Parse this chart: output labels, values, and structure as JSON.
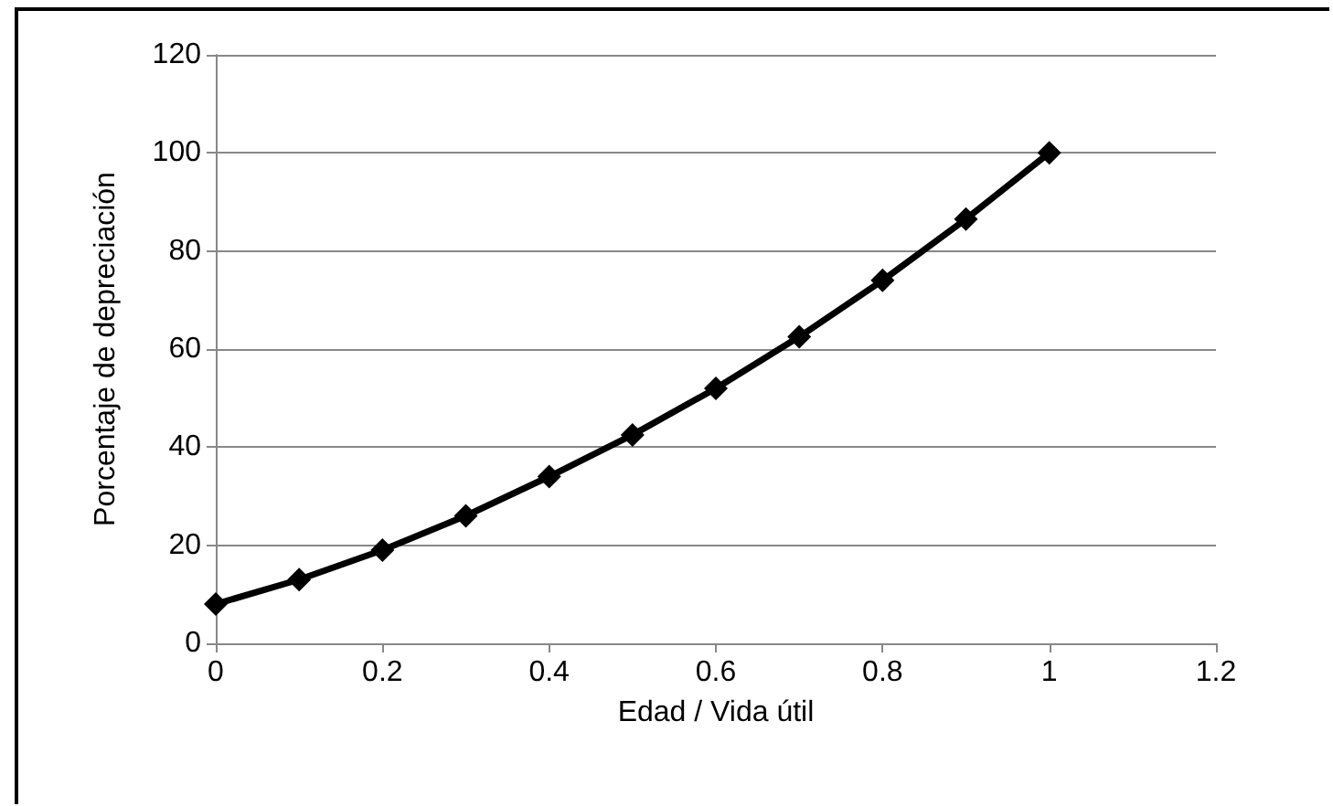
{
  "chart_data": {
    "type": "line",
    "xlabel": "Edad / Vida útil",
    "ylabel": "Porcentaje de depreciación",
    "x": [
      0,
      0.1,
      0.2,
      0.3,
      0.4,
      0.5,
      0.6,
      0.7,
      0.8,
      0.9,
      1
    ],
    "series": [
      {
        "color": "#000000",
        "values": [
          8,
          13,
          19,
          26,
          34,
          42.5,
          52,
          62.5,
          74,
          86.5,
          100
        ]
      }
    ],
    "xlim": [
      0,
      1.2
    ],
    "xticks": [
      0,
      0.2,
      0.4,
      0.6,
      0.8,
      1,
      1.2
    ],
    "ylim": [
      0,
      120
    ],
    "yticks": [
      0,
      20,
      40,
      60,
      80,
      100,
      120
    ],
    "grid": "y",
    "marker": "diamond",
    "line_style": "solid"
  }
}
